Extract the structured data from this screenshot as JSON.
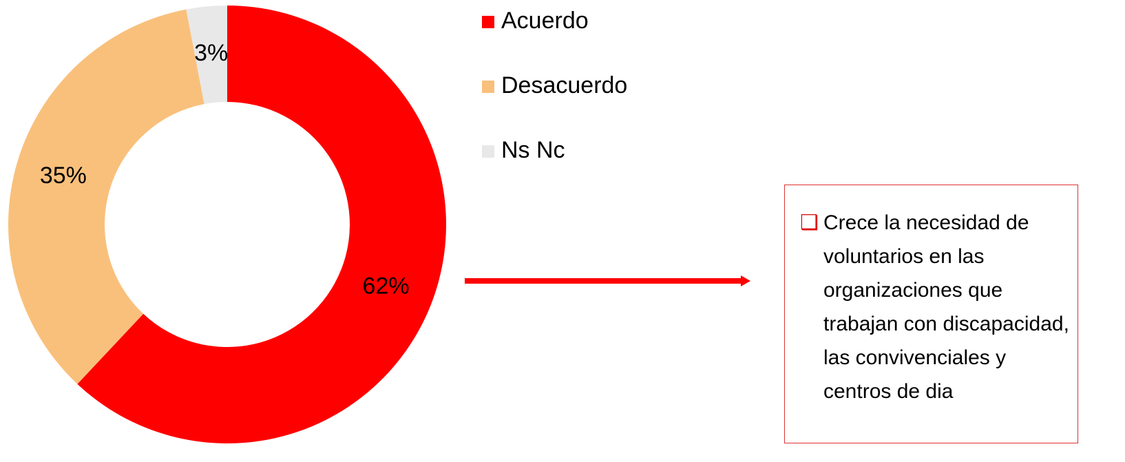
{
  "chart_data": {
    "type": "pie",
    "donut": true,
    "categories": [
      "Acuerdo",
      "Desacuerdo",
      "Ns Nc"
    ],
    "values": [
      62,
      35,
      3
    ],
    "value_labels": [
      "62%",
      "35%",
      "3%"
    ],
    "colors": [
      "#ff0000",
      "#f9c07c",
      "#e8e8e8"
    ],
    "annotation": "Crece la necesidad de voluntarios en las organizaciones que trabajan con discapacidad, las convivenciales y centros de dia"
  }
}
